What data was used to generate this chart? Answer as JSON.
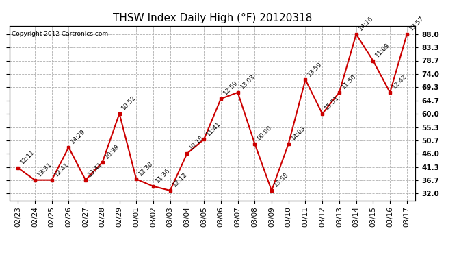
{
  "title": "THSW Index Daily High (°F) 20120318",
  "copyright": "Copyright 2012 Cartronics.com",
  "dates": [
    "02/23",
    "02/24",
    "02/25",
    "02/26",
    "02/27",
    "02/28",
    "02/29",
    "03/01",
    "03/02",
    "03/03",
    "03/04",
    "03/05",
    "03/06",
    "03/07",
    "03/08",
    "03/09",
    "03/10",
    "03/11",
    "03/12",
    "03/13",
    "03/14",
    "03/15",
    "03/16",
    "03/17"
  ],
  "values": [
    41.0,
    36.7,
    36.7,
    48.2,
    36.7,
    43.0,
    60.1,
    37.0,
    34.5,
    33.0,
    46.0,
    51.0,
    65.3,
    67.5,
    49.5,
    33.0,
    49.5,
    72.0,
    60.0,
    67.5,
    88.0,
    78.7,
    67.5,
    88.0
  ],
  "labels": [
    "12:11",
    "13:31",
    "12:41",
    "14:29",
    "13:41",
    "10:39",
    "10:52",
    "12:30",
    "11:36",
    "12:12",
    "10:18",
    "11:41",
    "12:59",
    "13:03",
    "00:00",
    "13:58",
    "14:03",
    "13:59",
    "15:51",
    "11:50",
    "14:16",
    "11:09",
    "12:42",
    "13:57"
  ],
  "line_color": "#cc0000",
  "marker_color": "#cc0000",
  "bg_color": "#ffffff",
  "grid_color": "#b0b0b0",
  "title_fontsize": 11,
  "label_fontsize": 6.5,
  "tick_fontsize": 7.5,
  "yticks": [
    32.0,
    36.7,
    41.3,
    46.0,
    50.7,
    55.3,
    60.0,
    64.7,
    69.3,
    74.0,
    78.7,
    83.3,
    88.0
  ],
  "ylim": [
    29.5,
    91.0
  ],
  "xlim": [
    -0.5,
    23.5
  ]
}
